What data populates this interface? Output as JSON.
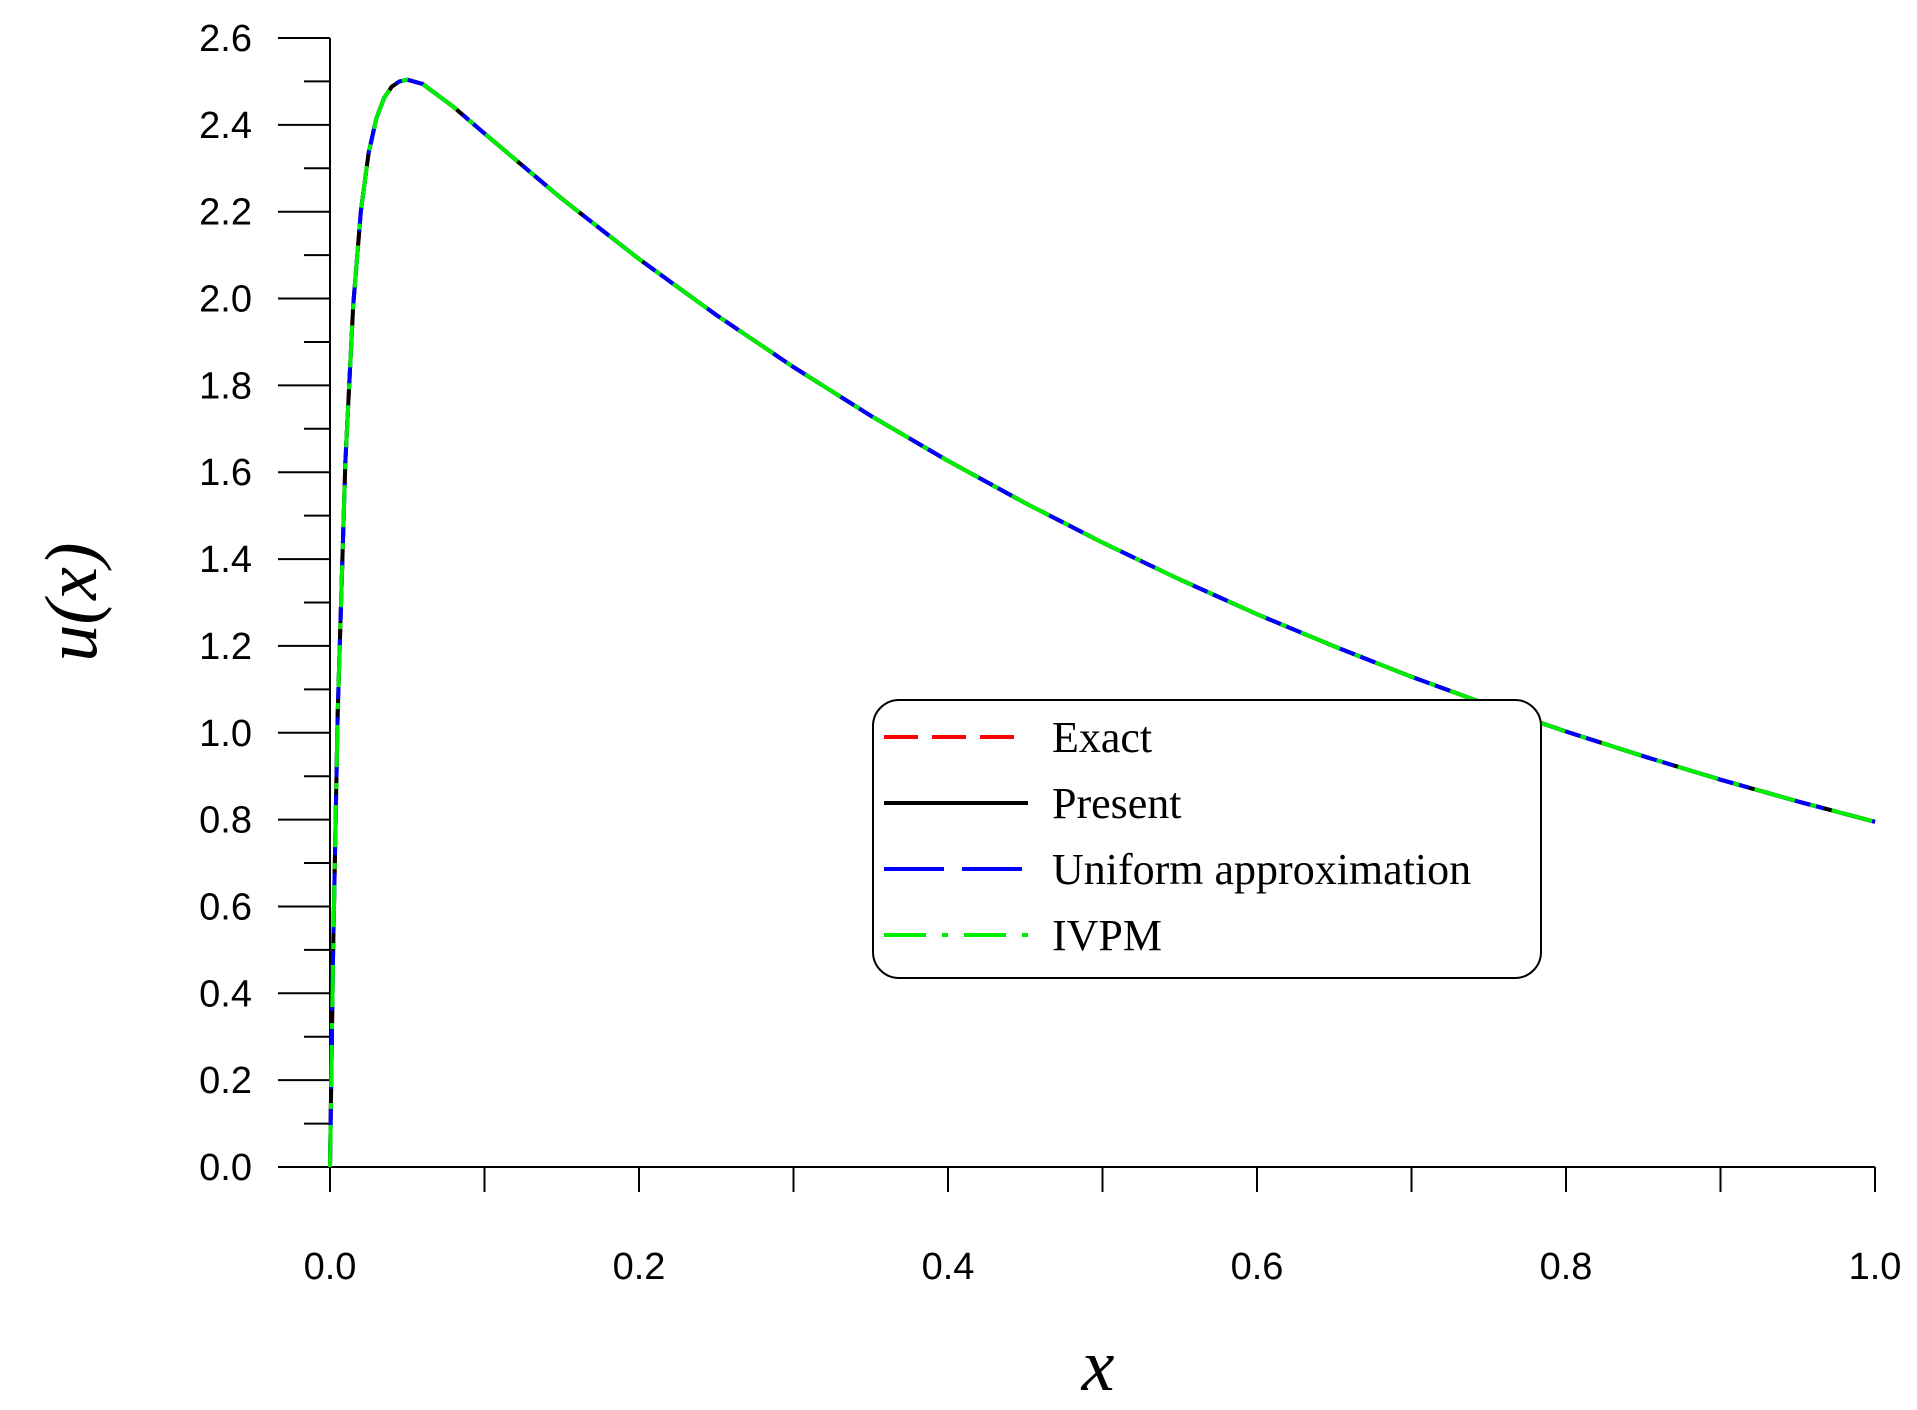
{
  "chart_data": {
    "type": "line",
    "xlabel": "x",
    "ylabel": "u(x)",
    "xlim": [
      0.0,
      1.0
    ],
    "ylim": [
      0.0,
      2.6
    ],
    "x_major_ticks": [
      "0.0",
      "0.2",
      "0.4",
      "0.6",
      "0.8",
      "1.0"
    ],
    "y_major_ticks": [
      "0.0",
      "0.2",
      "0.4",
      "0.6",
      "0.8",
      "1.0",
      "1.2",
      "1.4",
      "1.6",
      "1.8",
      "2.0",
      "2.2",
      "2.4",
      "2.6"
    ],
    "grid": false,
    "legend_position": "center-right",
    "x": [
      0.0,
      0.002,
      0.005,
      0.01,
      0.015,
      0.02,
      0.025,
      0.03,
      0.035,
      0.04,
      0.045,
      0.05,
      0.06,
      0.08,
      0.1,
      0.15,
      0.2,
      0.25,
      0.3,
      0.35,
      0.4,
      0.45,
      0.5,
      0.55,
      0.6,
      0.65,
      0.7,
      0.75,
      0.8,
      0.85,
      0.9,
      0.95,
      1.0
    ],
    "series": [
      {
        "name": "Exact",
        "color": "#ff0000",
        "style": "dashed",
        "values": [
          0.0,
          0.494,
          1.045,
          1.626,
          1.984,
          2.202,
          2.335,
          2.415,
          2.462,
          2.488,
          2.5,
          2.504,
          2.494,
          2.441,
          2.38,
          2.23,
          2.091,
          1.962,
          1.842,
          1.73,
          1.626,
          1.529,
          1.438,
          1.353,
          1.273,
          1.199,
          1.129,
          1.064,
          1.003,
          0.946,
          0.892,
          0.842,
          0.795
        ]
      },
      {
        "name": "Present",
        "color": "#000000",
        "style": "solid",
        "values": [
          0.0,
          0.494,
          1.045,
          1.626,
          1.984,
          2.202,
          2.335,
          2.415,
          2.462,
          2.488,
          2.5,
          2.504,
          2.494,
          2.441,
          2.38,
          2.23,
          2.091,
          1.962,
          1.842,
          1.73,
          1.626,
          1.529,
          1.438,
          1.353,
          1.273,
          1.199,
          1.129,
          1.064,
          1.003,
          0.946,
          0.892,
          0.842,
          0.795
        ]
      },
      {
        "name": "Uniform approximation",
        "color": "#0000ff",
        "style": "long-dash",
        "values": [
          0.0,
          0.494,
          1.045,
          1.626,
          1.984,
          2.202,
          2.335,
          2.415,
          2.462,
          2.488,
          2.5,
          2.504,
          2.494,
          2.441,
          2.38,
          2.23,
          2.091,
          1.962,
          1.842,
          1.73,
          1.626,
          1.529,
          1.438,
          1.353,
          1.273,
          1.199,
          1.129,
          1.064,
          1.003,
          0.946,
          0.892,
          0.842,
          0.795
        ]
      },
      {
        "name": "IVPM",
        "color": "#00ee00",
        "style": "dash-dot",
        "values": [
          0.0,
          0.494,
          1.045,
          1.626,
          1.984,
          2.202,
          2.335,
          2.415,
          2.462,
          2.488,
          2.5,
          2.504,
          2.494,
          2.441,
          2.38,
          2.23,
          2.091,
          1.962,
          1.842,
          1.73,
          1.626,
          1.529,
          1.438,
          1.353,
          1.273,
          1.199,
          1.129,
          1.064,
          1.003,
          0.946,
          0.892,
          0.842,
          0.795
        ]
      }
    ]
  }
}
